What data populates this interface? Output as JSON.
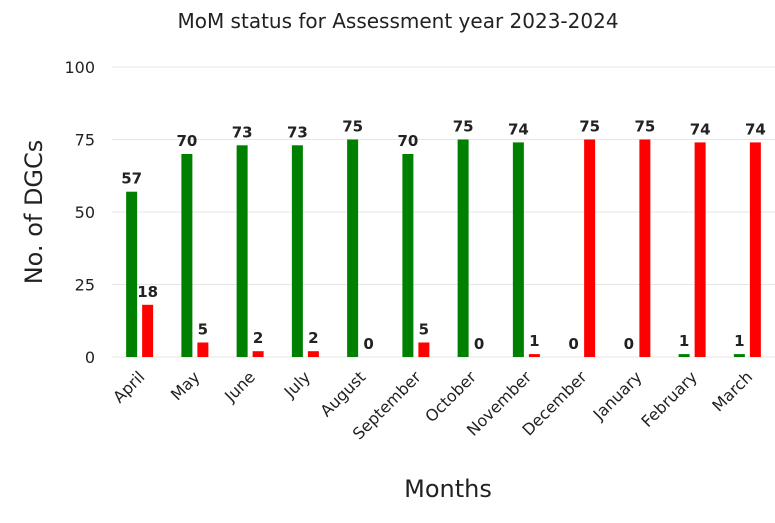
{
  "chart_data": {
    "type": "bar",
    "title": "MoM status for Assessment year 2023-2024",
    "xlabel": "Months",
    "ylabel": "No. of DGCs",
    "ylim": [
      0,
      100
    ],
    "yticks": [
      0,
      25,
      50,
      75,
      100
    ],
    "grid": true,
    "categories": [
      "April",
      "May",
      "June",
      "July",
      "August",
      "September",
      "October",
      "November",
      "December",
      "January",
      "February",
      "March"
    ],
    "series": [
      {
        "name": "Green",
        "color": "#008000",
        "values": [
          57,
          70,
          73,
          73,
          75,
          70,
          75,
          74,
          0,
          0,
          1,
          1
        ]
      },
      {
        "name": "Red",
        "color": "#ff0000",
        "values": [
          18,
          5,
          2,
          2,
          0,
          5,
          0,
          1,
          75,
          75,
          74,
          74
        ]
      }
    ],
    "data_labels": [
      "57",
      "18",
      "70",
      "5",
      "73",
      "2",
      "73",
      "2",
      "75",
      "0",
      "70",
      "5",
      "75",
      "0",
      "74",
      "1",
      "0",
      "75",
      "0",
      "75",
      "1",
      "74",
      "1",
      "74"
    ]
  }
}
